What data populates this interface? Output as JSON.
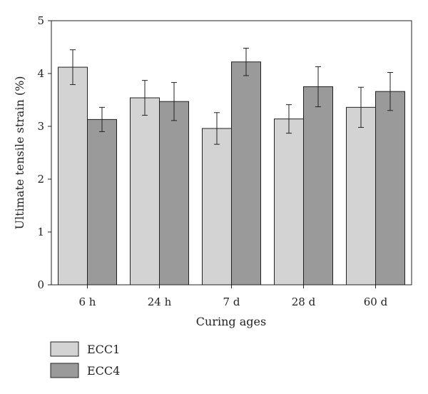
{
  "chart_data": {
    "type": "bar",
    "xlabel": "Curing ages",
    "ylabel": "Ultimate tensile strain (%)",
    "ylim": [
      0,
      5
    ],
    "yticks": [
      0,
      1,
      2,
      3,
      4,
      5
    ],
    "categories": [
      "6 h",
      "24 h",
      "7 d",
      "28 d",
      "60 d"
    ],
    "series": [
      {
        "name": "ECC1",
        "color": "#d3d3d3",
        "values": [
          4.12,
          3.54,
          2.96,
          3.14,
          3.36
        ],
        "errors": [
          0.33,
          0.33,
          0.3,
          0.27,
          0.38
        ]
      },
      {
        "name": "ECC4",
        "color": "#9a9a9a",
        "values": [
          3.13,
          3.47,
          4.22,
          3.75,
          3.66
        ],
        "errors": [
          0.23,
          0.36,
          0.26,
          0.38,
          0.36
        ]
      }
    ],
    "legend_position": "bottom-left",
    "grid": false
  }
}
